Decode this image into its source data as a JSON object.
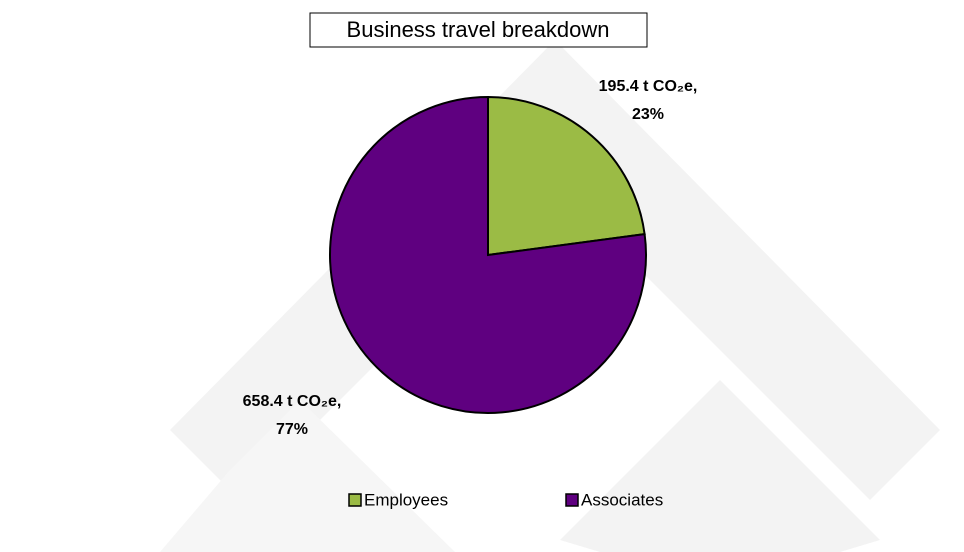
{
  "chart_data": {
    "type": "pie",
    "title": "Business travel breakdown",
    "categories": [
      "Employees",
      "Associates"
    ],
    "values": [
      195.4,
      658.4
    ],
    "value_labels": [
      [
        "195.4 t CO₂e,",
        "23%"
      ],
      [
        "658.4 t CO₂e,",
        "77%"
      ]
    ],
    "colors": [
      "#9bbb45",
      "#5f0080"
    ],
    "legend": "bottom"
  }
}
